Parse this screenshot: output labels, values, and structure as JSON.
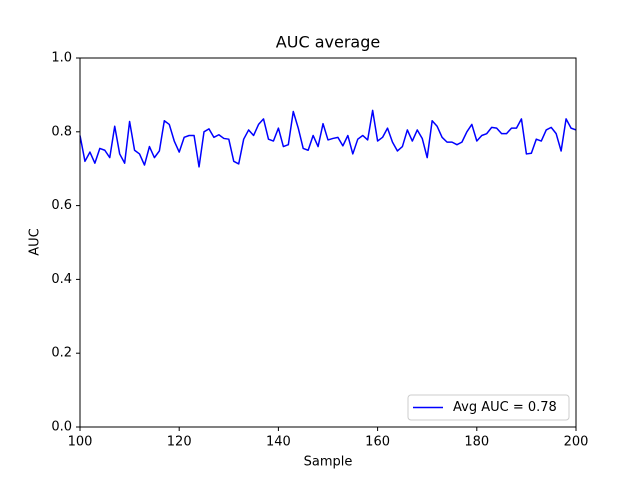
{
  "chart_data": {
    "type": "line",
    "title": "AUC average",
    "xlabel": "Sample",
    "ylabel": "AUC",
    "x": [
      100,
      101,
      102,
      103,
      104,
      105,
      106,
      107,
      108,
      109,
      110,
      111,
      112,
      113,
      114,
      115,
      116,
      117,
      118,
      119,
      120,
      121,
      122,
      123,
      124,
      125,
      126,
      127,
      128,
      129,
      130,
      131,
      132,
      133,
      134,
      135,
      136,
      137,
      138,
      139,
      140,
      141,
      142,
      143,
      144,
      145,
      146,
      147,
      148,
      149,
      150,
      151,
      152,
      153,
      154,
      155,
      156,
      157,
      158,
      159,
      160,
      161,
      162,
      163,
      164,
      165,
      166,
      167,
      168,
      169,
      170,
      171,
      172,
      173,
      174,
      175,
      176,
      177,
      178,
      179,
      180,
      181,
      182,
      183,
      184,
      185,
      186,
      187,
      188,
      189,
      190,
      191,
      192,
      193,
      194,
      195,
      196,
      197,
      198,
      199,
      200
    ],
    "series": [
      {
        "name": "Avg AUC = 0.78",
        "color": "#0000ff",
        "values": [
          0.79,
          0.72,
          0.745,
          0.715,
          0.755,
          0.75,
          0.73,
          0.815,
          0.74,
          0.715,
          0.828,
          0.75,
          0.74,
          0.71,
          0.76,
          0.73,
          0.748,
          0.83,
          0.82,
          0.775,
          0.745,
          0.785,
          0.79,
          0.79,
          0.705,
          0.8,
          0.808,
          0.785,
          0.792,
          0.782,
          0.78,
          0.72,
          0.713,
          0.78,
          0.805,
          0.79,
          0.82,
          0.835,
          0.78,
          0.775,
          0.81,
          0.76,
          0.765,
          0.855,
          0.81,
          0.755,
          0.75,
          0.79,
          0.76,
          0.822,
          0.778,
          0.782,
          0.785,
          0.762,
          0.79,
          0.74,
          0.78,
          0.79,
          0.778,
          0.858,
          0.775,
          0.785,
          0.81,
          0.772,
          0.748,
          0.76,
          0.805,
          0.775,
          0.805,
          0.782,
          0.73,
          0.83,
          0.815,
          0.785,
          0.772,
          0.772,
          0.765,
          0.772,
          0.8,
          0.82,
          0.775,
          0.79,
          0.795,
          0.812,
          0.81,
          0.795,
          0.795,
          0.81,
          0.81,
          0.835,
          0.74,
          0.742,
          0.78,
          0.775,
          0.805,
          0.812,
          0.795,
          0.748,
          0.835,
          0.81,
          0.805
        ]
      }
    ],
    "xlim": [
      100,
      200
    ],
    "ylim": [
      0,
      1
    ],
    "xticks": [
      100,
      120,
      140,
      160,
      180,
      200
    ],
    "yticks": [
      {
        "value": 0,
        "label": "0.0"
      },
      {
        "value": 0.2,
        "label": "0.2"
      },
      {
        "value": 0.4,
        "label": "0.4"
      },
      {
        "value": 0.6,
        "label": "0.6"
      },
      {
        "value": 0.8,
        "label": "0.8"
      },
      {
        "value": 1,
        "label": "1.0"
      }
    ],
    "legend": "lower right"
  }
}
